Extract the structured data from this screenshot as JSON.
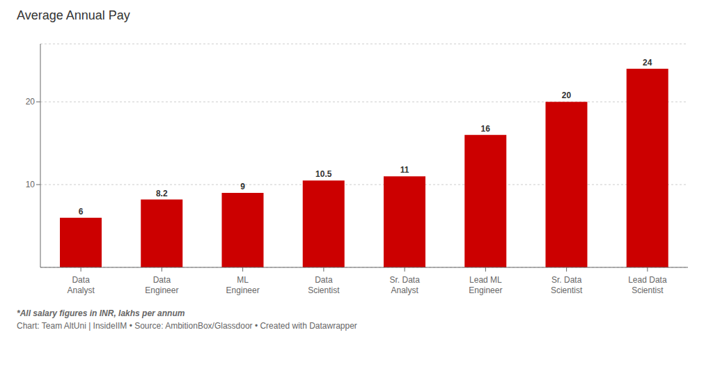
{
  "chart_data": {
    "type": "bar",
    "title": "Average Annual Pay",
    "categories": [
      "Data\nAnalyst",
      "Data\nEngineer",
      "ML\nEngineer",
      "Data\nScientist",
      "Sr. Data\nAnalyst",
      "Lead ML\nEngineer",
      "Sr. Data\nScientist",
      "Lead Data\nScientist"
    ],
    "values": [
      6,
      8.2,
      9,
      10.5,
      11,
      16,
      20,
      24
    ],
    "color": "#cc0000",
    "ylim": [
      0,
      27
    ],
    "yticks": [
      10,
      20
    ],
    "grid": true,
    "data_labels": true,
    "annotations": [
      "*All salary figures in INR, lakhs per annum",
      "Chart: Team AltUni | InsideIIM • Source: AmbitionBox/Glassdoor • Created with Datawrapper"
    ]
  }
}
